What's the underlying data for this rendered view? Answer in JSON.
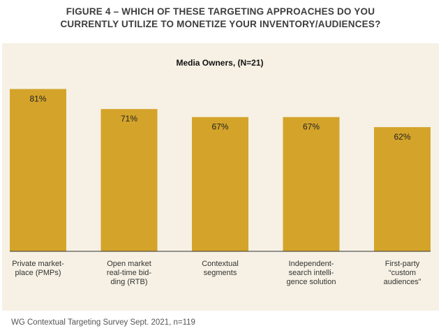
{
  "figure": {
    "title_line1": "FIGURE 4 – WHICH OF THESE TARGETING APPROACHES DO YOU",
    "title_line2": "CURRENTLY UTILIZE TO MONETIZE YOUR INVENTORY/AUDIENCES?",
    "source": "WG Contextual Targeting Survey Sept. 2021, n=119"
  },
  "chart_data": {
    "type": "bar",
    "title": "Media Owners, (N=21)",
    "categories": [
      "Private market-\nplace (PMPs)",
      "Open market\nreal-time bid-\nding (RTB)",
      "Contextual\nsegments",
      "Independent-\nsearch intelli-\ngence solution",
      "First-party\n“custom\naudiences”"
    ],
    "values": [
      81,
      71,
      67,
      67,
      62
    ],
    "data_labels": [
      "81%",
      "71%",
      "67%",
      "67%",
      "62%"
    ],
    "ylim": [
      0,
      100
    ],
    "grid": false,
    "colors": {
      "bar": "#d4a42a",
      "panel": "#f6f1e4",
      "axis": "#333333"
    }
  }
}
